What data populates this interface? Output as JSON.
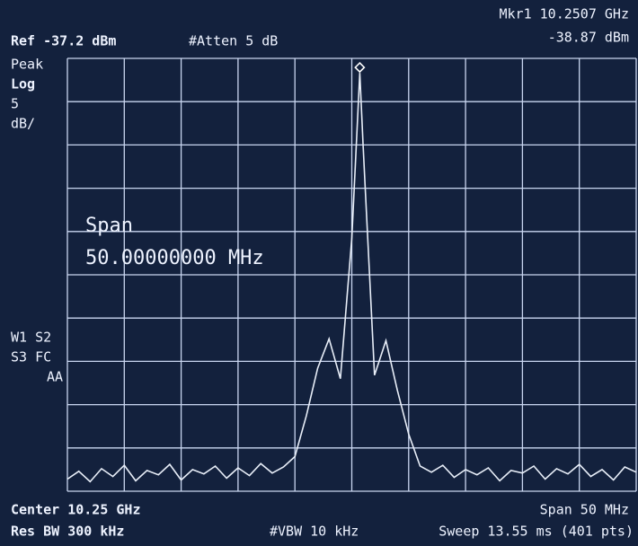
{
  "chart_data": {
    "type": "line",
    "ref": "Ref -37.2 dBm",
    "atten": "#Atten 5 dB",
    "marker_label": "Mkr1 10.2507 GHz",
    "marker_level": "-38.87 dBm",
    "detector": "Peak",
    "scale_type": "Log",
    "scale_per_div": "5",
    "scale_unit": "dB/",
    "overlay_title": "Span",
    "overlay_value": "50.00000000 MHz",
    "status": [
      "W1 S2",
      "S3 FC",
      "AA"
    ],
    "center": "Center 10.25 GHz",
    "span": "Span 50 MHz",
    "rbw": "Res BW 300 kHz",
    "vbw": "#VBW 10 kHz",
    "sweep": "Sweep 13.55 ms (401 pts)",
    "xlim": [
      10.225,
      10.275
    ],
    "ylim": [
      -87.2,
      -37.2
    ],
    "grid_divisions": 10,
    "marker_index": 26,
    "x": [
      10.225,
      10.226,
      10.227,
      10.228,
      10.229,
      10.23,
      10.231,
      10.232,
      10.233,
      10.234,
      10.235,
      10.236,
      10.237,
      10.238,
      10.239,
      10.24,
      10.241,
      10.242,
      10.243,
      10.244,
      10.245,
      10.246,
      10.247,
      10.248,
      10.249,
      10.25,
      10.2507,
      10.251,
      10.252,
      10.253,
      10.254,
      10.255,
      10.256,
      10.257,
      10.258,
      10.259,
      10.26,
      10.261,
      10.262,
      10.263,
      10.264,
      10.265,
      10.266,
      10.267,
      10.268,
      10.269,
      10.27,
      10.271,
      10.272,
      10.273,
      10.274,
      10.275
    ],
    "series": [
      {
        "color": "#e8eef8",
        "values": [
          -85.8,
          -84.9,
          -86.1,
          -84.6,
          -85.5,
          -84.2,
          -86.0,
          -84.8,
          -85.3,
          -84.1,
          -85.9,
          -84.7,
          -85.2,
          -84.3,
          -85.7,
          -84.5,
          -85.4,
          -84.0,
          -85.1,
          -84.4,
          -83.2,
          -78.5,
          -73.0,
          -69.6,
          -74.2,
          -58.0,
          -38.87,
          -47.5,
          -73.8,
          -69.8,
          -75.5,
          -80.6,
          -84.3,
          -85.0,
          -84.2,
          -85.6,
          -84.7,
          -85.3,
          -84.5,
          -86.0,
          -84.8,
          -85.1,
          -84.3,
          -85.8,
          -84.6,
          -85.2,
          -84.1,
          -85.5,
          -84.7,
          -85.9,
          -84.4,
          -85.0
        ]
      }
    ]
  }
}
